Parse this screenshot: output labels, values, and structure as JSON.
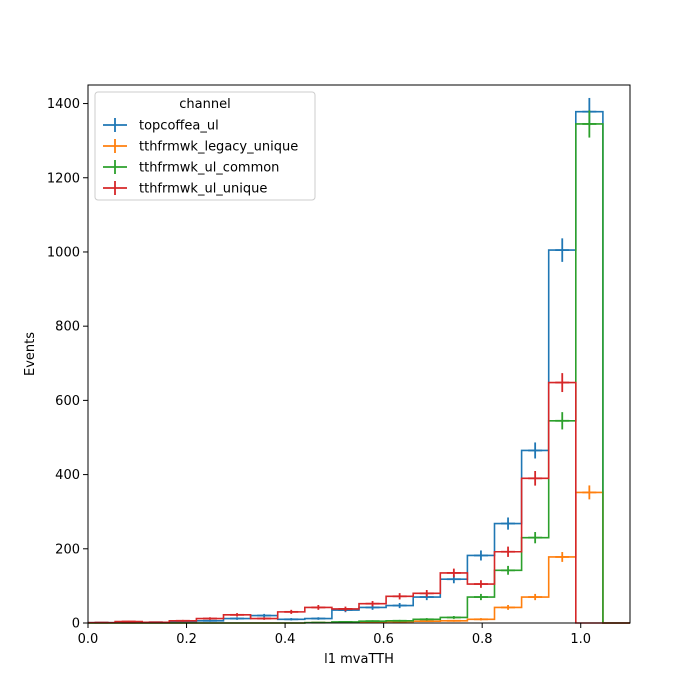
{
  "chart_data": {
    "type": "histogram-step",
    "xlabel": "l1 mvaTTH",
    "ylabel": "Events",
    "xlim": [
      0,
      1.1
    ],
    "ylim": [
      0,
      1450
    ],
    "xticks": [
      0.0,
      0.2,
      0.4,
      0.6,
      0.8,
      1.0
    ],
    "xtick_labels": [
      "0.0",
      "0.2",
      "0.4",
      "0.6",
      "0.8",
      "1.0"
    ],
    "yticks": [
      0,
      200,
      400,
      600,
      800,
      1000,
      1200,
      1400
    ],
    "ytick_labels": [
      "0",
      "200",
      "400",
      "600",
      "800",
      "1000",
      "1200",
      "1400"
    ],
    "grid": false,
    "legend": {
      "title": "channel",
      "placement": "top-left"
    },
    "bin_edges": [
      0.0,
      0.055,
      0.11,
      0.165,
      0.22,
      0.275,
      0.33,
      0.385,
      0.44,
      0.495,
      0.55,
      0.605,
      0.66,
      0.715,
      0.77,
      0.825,
      0.88,
      0.935,
      0.99,
      1.045,
      1.1
    ],
    "series": [
      {
        "name": "topcoffea_ul",
        "color": "#1f77b4",
        "values": [
          1,
          1,
          2,
          3,
          6,
          12,
          20,
          10,
          12,
          35,
          42,
          47,
          70,
          118,
          182,
          268,
          465,
          1005,
          1378,
          0
        ],
        "errors": [
          1,
          1,
          1.4,
          1.7,
          2.4,
          3.5,
          4.5,
          3.2,
          3.5,
          5.9,
          6.5,
          6.9,
          8.4,
          10.9,
          13.5,
          16.4,
          21.6,
          31.7,
          37.1,
          0
        ]
      },
      {
        "name": "tthfrmwk_legacy_unique",
        "color": "#ff7f0e",
        "values": [
          0,
          0,
          0,
          0,
          0,
          0,
          0,
          0,
          1,
          2,
          3,
          4,
          5,
          6,
          10,
          42,
          70,
          178,
          352,
          0
        ],
        "errors": [
          0,
          0,
          0,
          0,
          0,
          0,
          0,
          0,
          1,
          1.4,
          1.7,
          2,
          2.2,
          2.4,
          3.2,
          6.5,
          8.4,
          13.3,
          18.8,
          0
        ]
      },
      {
        "name": "tthfrmwk_ul_common",
        "color": "#2ca02c",
        "values": [
          0,
          0,
          0,
          0,
          0,
          0,
          0,
          0,
          1,
          3,
          5,
          6,
          10,
          15,
          70,
          142,
          230,
          545,
          1345,
          0
        ],
        "errors": [
          0,
          0,
          0,
          0,
          0,
          0,
          0,
          0,
          1,
          1.7,
          2.2,
          2.4,
          3.2,
          3.9,
          8.4,
          11.9,
          15.2,
          23.3,
          36.7,
          0
        ]
      },
      {
        "name": "tthfrmwk_ul_unique",
        "color": "#d62728",
        "values": [
          1,
          4,
          2,
          6,
          12,
          22,
          12,
          30,
          42,
          38,
          52,
          72,
          80,
          135,
          105,
          192,
          390,
          648,
          0,
          0
        ],
        "errors": [
          1,
          2,
          1.4,
          2.4,
          3.5,
          4.7,
          3.5,
          5.5,
          6.5,
          6.2,
          7.2,
          8.5,
          8.9,
          11.6,
          10.2,
          13.9,
          19.7,
          25.5,
          0,
          0
        ]
      }
    ]
  }
}
